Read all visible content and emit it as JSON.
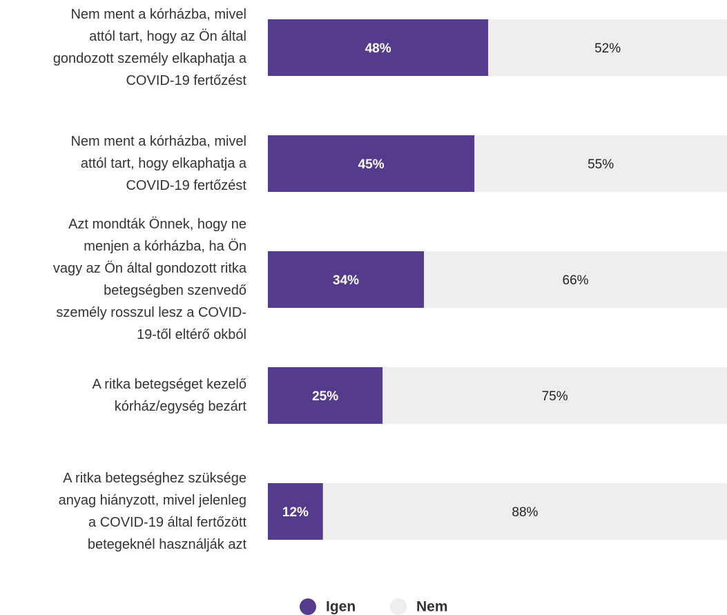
{
  "chart_data": {
    "type": "stacked-bar-horizontal",
    "categories": [
      "Nem ment a kórházba, mivel\nattól tart, hogy az Ön által\ngondozott személy elkaphatja a\nCOVID-19 fertőzést",
      "Nem ment a kórházba, mivel\nattól tart, hogy elkaphatja a\nCOVID-19 fertőzést",
      "Azt mondták Önnek, hogy ne\nmenjen a kórházba, ha Ön\nvagy az Ön által gondozott ritka\nbetegségben szenvedő\nszemély rosszul lesz a COVID-\n19-től eltérő okból",
      "A ritka betegséget kezelő\nkórház/egység bezárt",
      "A ritka betegséghez szüksége\nanyag hiányzott, mivel jelenleg\na COVID-19 által fertőzött\nbetegeknél használják azt"
    ],
    "series": [
      {
        "name": "Igen",
        "color": "#553b8b",
        "values": [
          48,
          45,
          34,
          25,
          12
        ],
        "value_labels": [
          "48%",
          "45%",
          "34%",
          "25%",
          "12%"
        ]
      },
      {
        "name": "Nem",
        "color": "#eeeeee",
        "values": [
          52,
          55,
          66,
          75,
          88
        ],
        "value_labels": [
          "52%",
          "55%",
          "66%",
          "75%",
          "88%"
        ]
      }
    ],
    "xlim": [
      0,
      100
    ]
  }
}
